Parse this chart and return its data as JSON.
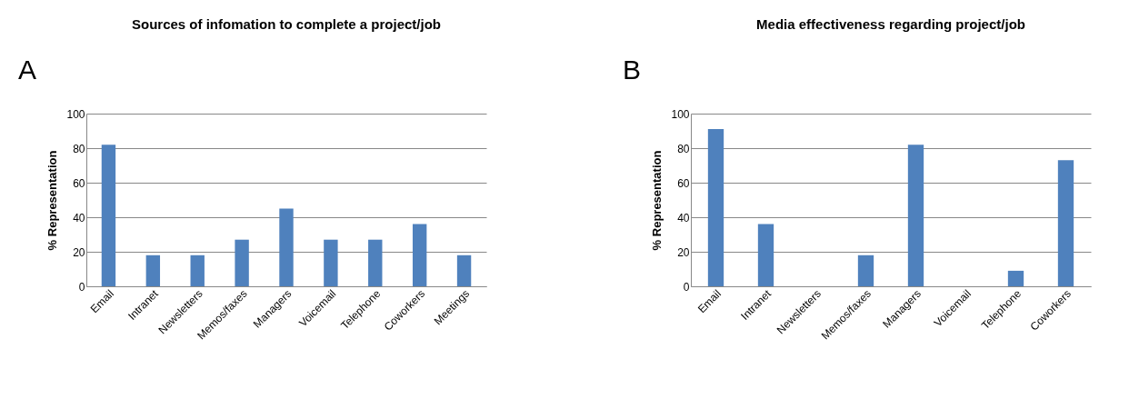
{
  "chart_data": [
    {
      "type": "bar",
      "title": "Sources of infomation to complete a project/job",
      "ylabel": "% Representation",
      "annotations": [
        "A"
      ],
      "categories": [
        "Email",
        "Intranet",
        "Newsletters",
        "Memos/faxes",
        "Managers",
        "Voicemail",
        "Telephone",
        "Coworkers",
        "Meetings"
      ],
      "values": [
        82,
        18,
        18,
        27,
        45,
        27,
        27,
        36,
        18
      ],
      "color": "#4f81bd",
      "ylim": [
        0,
        100
      ],
      "yticks": [
        0,
        20,
        40,
        60,
        80,
        100
      ],
      "grid": "y"
    },
    {
      "type": "bar",
      "title": "Media effectiveness regarding project/job",
      "ylabel": "% Representation",
      "annotations": [
        "B"
      ],
      "categories": [
        "Email",
        "Intranet",
        "Newsletters",
        "Memos/faxes",
        "Managers",
        "Voicemail",
        "Telephone",
        "Coworkers"
      ],
      "values": [
        91,
        36,
        0,
        18,
        82,
        0,
        9,
        73
      ],
      "color": "#4f81bd",
      "ylim": [
        0,
        100
      ],
      "yticks": [
        0,
        20,
        40,
        60,
        80,
        100
      ],
      "grid": "y"
    }
  ]
}
